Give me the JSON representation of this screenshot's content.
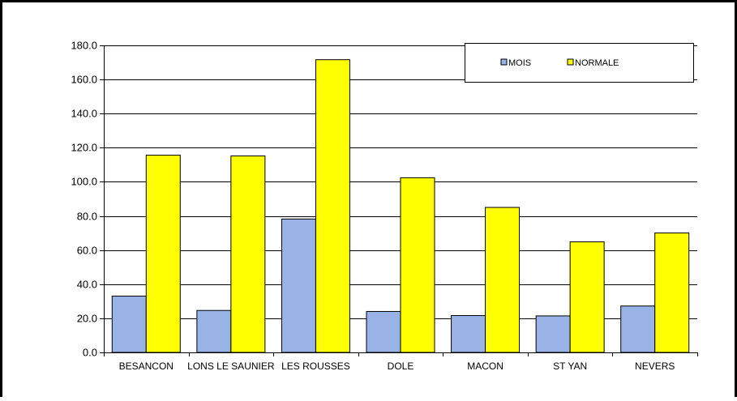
{
  "chart_data": {
    "type": "bar",
    "title": "",
    "xlabel": "",
    "ylabel": "",
    "categories": [
      "BESANCON",
      "LONS LE SAUNIER",
      "LES ROUSSES",
      "DOLE",
      "MACON",
      "ST YAN",
      "NEVERS"
    ],
    "series": [
      {
        "name": "MOIS",
        "color": "#99b3e6",
        "values": [
          33.0,
          24.6,
          78.2,
          24.0,
          21.6,
          21.4,
          27.2
        ]
      },
      {
        "name": "NORMALE",
        "color": "#ffff00",
        "values": [
          115.6,
          115.2,
          171.6,
          102.4,
          85.0,
          64.8,
          70.0
        ]
      }
    ],
    "ylim": [
      0,
      180
    ],
    "yticks": [
      "0.0",
      "20.0",
      "40.0",
      "60.0",
      "80.0",
      "100.0",
      "120.0",
      "140.0",
      "160.0",
      "180.0"
    ],
    "grid": true,
    "legend_position": "top-right"
  }
}
